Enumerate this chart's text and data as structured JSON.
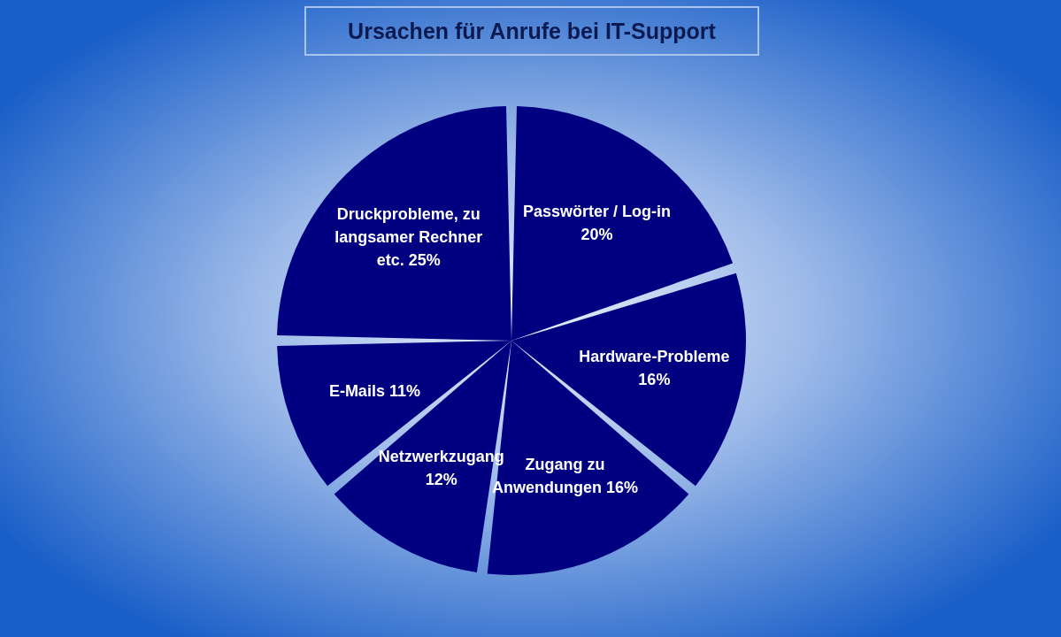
{
  "chart_data": {
    "type": "pie",
    "title": "Ursachen für Anrufe bei IT-Support",
    "categories": [
      "Passwörter / Log-in",
      "Hardware-Probleme",
      "Zugang zu Anwendungen",
      "Netzwerkzugang",
      "E-Mails",
      "Druckprobleme, zu langsamer Rechner etc."
    ],
    "values": [
      20,
      16,
      16,
      12,
      11,
      25
    ],
    "value_labels": [
      "20%",
      "16%",
      "16%",
      "12%",
      "11%",
      "25%"
    ],
    "colors": [
      "#000080",
      "#000080",
      "#000080",
      "#000080",
      "#000080",
      "#000080"
    ]
  }
}
